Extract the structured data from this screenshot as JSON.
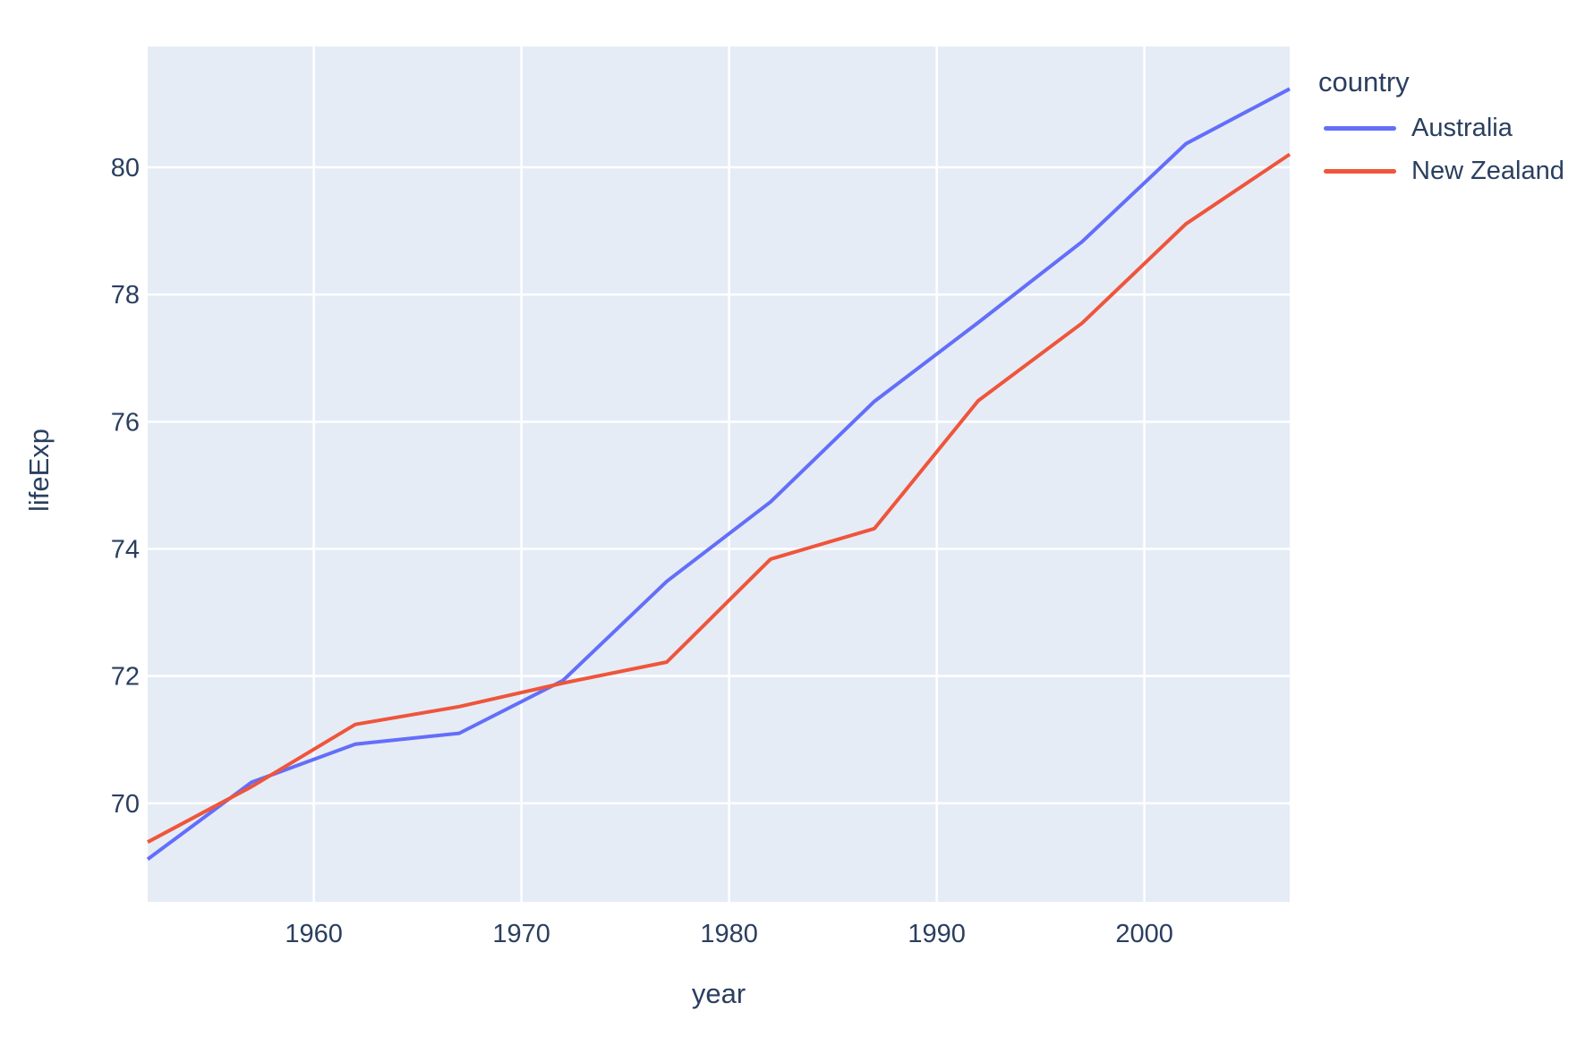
{
  "figure": {
    "background_color": "#ffffff",
    "plot_bgcolor": "#E5ECF6",
    "grid_color": "#ffffff",
    "text_color": "#2a3f5f"
  },
  "chart_data": {
    "type": "line",
    "title": "",
    "xlabel": "year",
    "ylabel": "lifeExp",
    "x": [
      1952,
      1957,
      1962,
      1967,
      1972,
      1977,
      1982,
      1987,
      1992,
      1997,
      2002,
      2007
    ],
    "series": [
      {
        "name": "Australia",
        "color": "#636efa",
        "values": [
          69.12,
          70.33,
          70.93,
          71.1,
          71.93,
          73.49,
          74.74,
          76.32,
          77.56,
          78.83,
          80.37,
          81.235
        ]
      },
      {
        "name": "New Zealand",
        "color": "#ef553b",
        "values": [
          69.39,
          70.26,
          71.24,
          71.52,
          71.89,
          72.22,
          73.84,
          74.32,
          76.33,
          77.55,
          79.11,
          80.204
        ]
      }
    ],
    "xlim": [
      1952,
      2007
    ],
    "ylim": [
      68.45,
      81.9
    ],
    "x_ticks": [
      1960,
      1970,
      1980,
      1990,
      2000
    ],
    "y_ticks": [
      70,
      72,
      74,
      76,
      78,
      80
    ],
    "grid": true,
    "legend": {
      "title": "country",
      "position": "top-right-outside"
    }
  }
}
